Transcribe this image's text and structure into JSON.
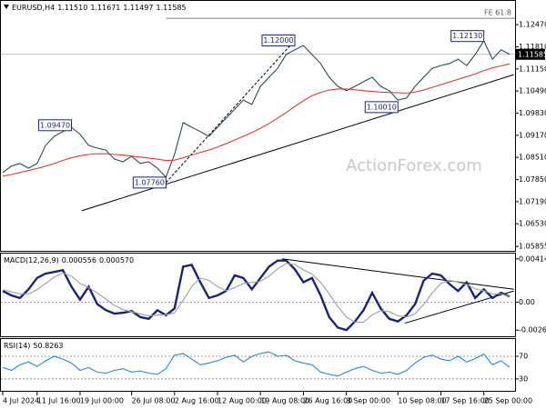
{
  "chart_data": [
    {
      "type": "line",
      "title": "EURUSD,H4",
      "ohlc": [
        "1.11510",
        "1.11671",
        "1.11497",
        "1.11585"
      ],
      "watermark": "ActionForex.com",
      "categories": [
        "4 Jul 2024",
        null,
        null,
        null,
        "11 Jul 16:00",
        null,
        null,
        null,
        null,
        "19 Jul 00:00",
        null,
        null,
        null,
        null,
        null,
        "26 Jul 08:00",
        null,
        null,
        null,
        null,
        "2 Aug 16:00",
        null,
        null,
        null,
        null,
        "12 Aug 00:00",
        null,
        null,
        null,
        null,
        "19 Aug 08:00",
        null,
        null,
        null,
        null,
        "26 Aug 16:00",
        null,
        null,
        null,
        null,
        "3 Sep 00:00",
        null,
        null,
        null,
        null,
        null,
        "10 Sep 08:00",
        null,
        null,
        null,
        null,
        "17 Sep 16:00",
        null,
        null,
        null,
        null,
        "25 Sep 00:00",
        null,
        null,
        null
      ],
      "series": [
        {
          "color": "#2b4c5c",
          "values": [
            1.0806,
            1.0825,
            1.0833,
            1.0819,
            1.0833,
            1.0887,
            1.0914,
            1.0928,
            1.0941,
            1.092,
            1.0887,
            1.0879,
            1.0873,
            1.0846,
            1.0838,
            1.0854,
            1.0833,
            1.0838,
            1.0819,
            1.0792,
            1.086,
            1.0955,
            1.0941,
            1.0928,
            1.0914,
            1.0941,
            1.0968,
            1.0995,
            1.1022,
            1.1009,
            1.1063,
            1.109,
            1.1117,
            1.1158,
            1.1172,
            1.1185,
            1.1158,
            1.1131,
            1.109,
            1.1063,
            1.105,
            1.1063,
            1.1077,
            1.109,
            1.1063,
            1.105,
            1.1022,
            1.1028,
            1.1063,
            1.109,
            1.1117,
            1.1125,
            1.1131,
            1.1144,
            1.1125,
            1.1158,
            1.1199,
            1.1144,
            1.1172,
            1.11585
          ]
        },
        {
          "color": "#e53935",
          "values": [
            1.0795,
            1.08,
            1.0806,
            1.0812,
            1.0818,
            1.0825,
            1.0833,
            1.0842,
            1.085,
            1.0856,
            1.086,
            1.0862,
            1.0862,
            1.086,
            1.0858,
            1.0855,
            1.0852,
            1.0849,
            1.0846,
            1.0842,
            1.0843,
            1.085,
            1.0858,
            1.0866,
            1.0873,
            1.0882,
            1.0892,
            1.0903,
            1.0914,
            1.0925,
            1.0938,
            1.0952,
            1.0968,
            1.0985,
            1.1003,
            1.102,
            1.1035,
            1.1045,
            1.1052,
            1.1055,
            1.1055,
            1.1053,
            1.105,
            1.1048,
            1.1046,
            1.1045,
            1.1044,
            1.1043,
            1.1046,
            1.1052,
            1.106,
            1.1068,
            1.1076,
            1.1084,
            1.1092,
            1.11,
            1.111,
            1.1118,
            1.1124,
            1.113
          ]
        }
      ],
      "ylim": [
        1.0575,
        1.1307
      ],
      "yticks": [
        {
          "value": 1.1247,
          "label": "1.12470"
        },
        {
          "value": 1.1181,
          "label": "1.11810"
        },
        {
          "value": 1.1115,
          "label": "1.11150"
        },
        {
          "value": 1.1049,
          "label": "1.10490"
        },
        {
          "value": 1.0983,
          "label": "1.09830"
        },
        {
          "value": 1.0917,
          "label": "1.09170"
        },
        {
          "value": 1.0851,
          "label": "1.08510"
        },
        {
          "value": 1.0785,
          "label": "1.07850"
        },
        {
          "value": 1.0719,
          "label": "1.07190"
        },
        {
          "value": 1.0653,
          "label": "1.06530"
        },
        {
          "value": 1.05855,
          "label": "1.05855"
        }
      ],
      "annotations": [
        {
          "value": 1.0947,
          "label": "1.09470",
          "x": 8
        },
        {
          "value": 1.0776,
          "label": "1.07760",
          "x": 19
        },
        {
          "value": 1.12,
          "label": "1.12000",
          "x": 34
        },
        {
          "value": 1.1001,
          "label": "1.10010",
          "x": 46
        },
        {
          "value": 1.1213,
          "label": "1.12130",
          "x": 56
        }
      ],
      "trendlines": [
        {
          "x": [
            9.2,
            59.5
          ],
          "y": [
            1.0692,
            1.1098
          ]
        },
        {
          "x": [
            19,
            34
          ],
          "y": [
            1.0776,
            1.12
          ],
          "dashed": true
        }
      ],
      "fe_line": {
        "value": 1.1266,
        "label": "FE 61.8",
        "x_start": 19
      },
      "last_price": {
        "value": 1.11585,
        "label": "1.11585"
      }
    },
    {
      "type": "line",
      "title": "MACD(12,26,9)",
      "readout": [
        "0.000556",
        "0.000570"
      ],
      "series": [
        {
          "color": "#1a237e",
          "values": [
            0.00108,
            0.00066,
            0.00041,
            0.00124,
            0.00232,
            0.00274,
            0.0029,
            0.00307,
            0.00149,
            0.00025,
            0.00149,
            -0.00017,
            -0.00075,
            -0.00108,
            -0.001,
            -0.00083,
            -0.00141,
            -0.00158,
            -0.00075,
            -0.00124,
            -0.00058,
            0.0034,
            0.00357,
            0.00191,
            0.00041,
            0.00066,
            0.00108,
            0.00257,
            0.00232,
            0.00124,
            0.00232,
            0.0034,
            0.00398,
            0.00398,
            0.00315,
            0.00191,
            0.00232,
            0.00066,
            -0.00141,
            -0.00241,
            -0.00265,
            -0.00183,
            -0.00075,
            0.00091,
            -0.00058,
            -0.00158,
            -0.00183,
            -0.00124,
            -0.00017,
            0.00207,
            0.00274,
            0.00257,
            0.00174,
            0.00108,
            0.00191,
            0.00041,
            0.00124,
            0.00041,
            0.00091,
            0.000556
          ]
        },
        {
          "color": "#9e9e9e",
          "values": [
            0.0012,
            0.001,
            0.0008,
            0.0008,
            0.0012,
            0.0018,
            0.0024,
            0.0028,
            0.0025,
            0.0018,
            0.0014,
            0.0009,
            0.0003,
            -0.0003,
            -0.0007,
            -0.0009,
            -0.0011,
            -0.0013,
            -0.0012,
            -0.0012,
            -0.001,
            0.0002,
            0.0015,
            0.0023,
            0.0021,
            0.0015,
            0.0011,
            0.0014,
            0.0018,
            0.0019,
            0.002,
            0.0025,
            0.0032,
            0.0037,
            0.0036,
            0.0031,
            0.0027,
            0.0019,
            0.0008,
            -0.0004,
            -0.0014,
            -0.0019,
            -0.0019,
            -0.0012,
            -0.0008,
            -0.0009,
            -0.0013,
            -0.0014,
            -0.0011,
            -0.0002,
            0.0009,
            0.0018,
            0.0021,
            0.0019,
            0.0017,
            0.0013,
            0.0011,
            0.0008,
            0.0008,
            0.00057
          ]
        }
      ],
      "ylim": [
        -0.00307,
        0.00456
      ],
      "yticks": [
        0.004148,
        {
          "value": 0,
          "label": "0.00"
        },
        -0.002656
      ],
      "zero_line": true,
      "trendlines": [
        {
          "x": [
            32.5,
            59.5
          ],
          "y": [
            0.004148,
            0.00124
          ]
        },
        {
          "x": [
            46.8,
            59.5
          ],
          "y": [
            -0.00199,
            0.00108
          ]
        }
      ]
    },
    {
      "type": "line",
      "title": "RSI(14)",
      "readout": [
        "50.8263"
      ],
      "series": [
        {
          "color": "#1e88e5",
          "values": [
            50,
            45,
            55,
            60,
            52,
            62,
            70,
            65,
            58,
            45,
            50,
            42,
            40,
            45,
            48,
            42,
            44,
            40,
            38,
            48,
            72,
            75,
            65,
            55,
            58,
            62,
            68,
            72,
            60,
            70,
            75,
            78,
            70,
            72,
            62,
            58,
            55,
            42,
            38,
            35,
            42,
            48,
            52,
            45,
            40,
            42,
            38,
            45,
            58,
            68,
            72,
            65,
            62,
            70,
            60,
            66,
            74,
            55,
            62,
            50.8263
          ]
        }
      ],
      "ylim": [
        12,
        99
      ],
      "yticks": [
        70,
        30
      ],
      "grid": true
    }
  ]
}
